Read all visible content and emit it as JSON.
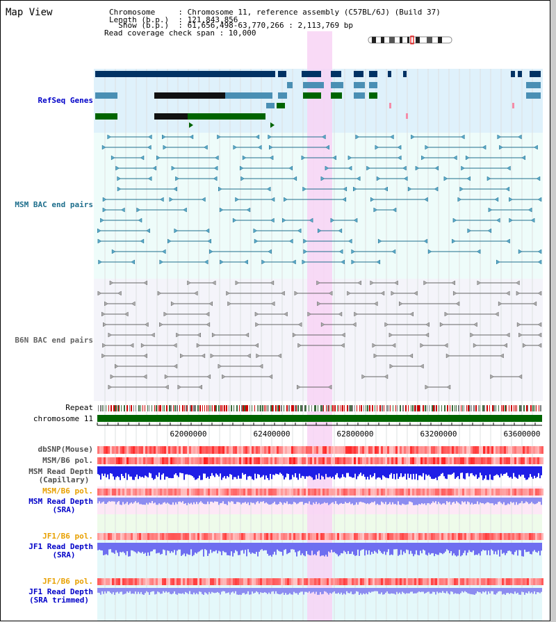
{
  "app": {
    "title": "Map View"
  },
  "header": {
    "chromosome_line": "Chromosome     : Chromosome 11, reference assembly (C57BL/6J) (Build 37)",
    "length_line": "Length (b.p.)  : 121,843,856",
    "show_line": "  Show (b.p.)  : 61,656,498-63,770,266 : 2,113,769 bp",
    "coverage_line": "Read coverage check span : 10,000"
  },
  "colors": {
    "refseq_bg": "#dff1fb",
    "msm_bac_bg": "#eefcfa",
    "b6n_bac_bg": "#f4f4fa",
    "highlight": "#f8d4f4",
    "gene_dark": "#003264",
    "gene_mid": "#4a8fb4",
    "gene_green": "#006400",
    "msm_bac_line": "#1e6e8c",
    "b6n_bac_line": "#646464",
    "chrom_bar": "#006400",
    "snp_red": "#ff3232",
    "msm_depth": "#1e1ee6",
    "sra_depth": "#8c8cf0"
  },
  "tracks": {
    "refseq_genes": "RefSeq Genes",
    "msm_bac": "MSM BAC end pairs",
    "b6n_bac": "B6N BAC end pairs",
    "repeat": "Repeat",
    "chromosome": "chromosome 11",
    "dbsnp": "dbSNP(Mouse)",
    "msm_b6_pol_1": "MSM/B6 pol.",
    "msm_depth_cap_1": "MSM Read Depth",
    "msm_depth_cap_2": "(Capillary)",
    "msm_b6_pol_2": "MSM/B6 pol.",
    "msm_depth_sra_1": "MSM Read Depth",
    "msm_depth_sra_2": "(SRA)",
    "jf1_pol_1": "JF1/B6 pol.",
    "jf1_depth_sra_1": "JF1 Read Depth",
    "jf1_depth_sra_2": "(SRA)",
    "jf1_pol_2": "JF1/B6 pol.",
    "jf1_depth_trim_1": "JF1 Read Depth",
    "jf1_depth_trim_2": "(SRA trimmed)"
  },
  "ruler": {
    "ticks": [
      "62000000",
      "62400000",
      "62800000",
      "63200000",
      "63600000"
    ]
  }
}
